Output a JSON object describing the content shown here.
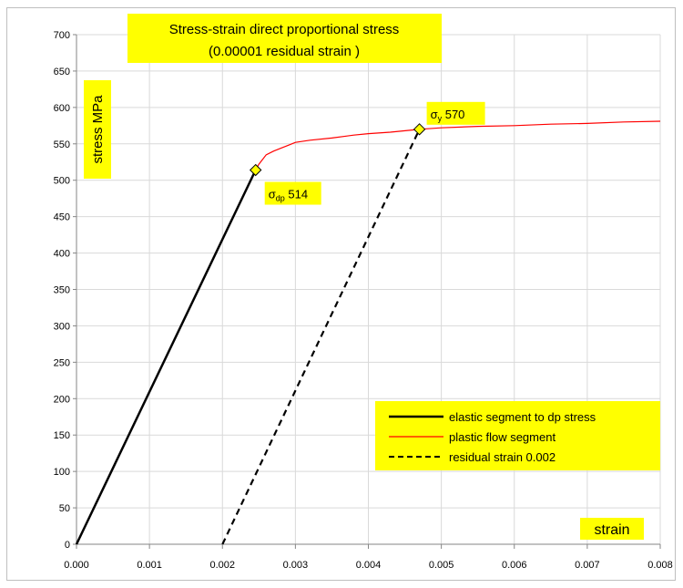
{
  "chart_data": {
    "type": "line",
    "title_line1": "Stress-strain direct proportional stress",
    "title_line2": "(0.00001 residual strain )",
    "xlabel": "strain",
    "ylabel": "stress  MPa",
    "xlim": [
      0,
      0.008
    ],
    "ylim": [
      0,
      700
    ],
    "x_ticks": [
      "0.000",
      "0.001",
      "0.002",
      "0.003",
      "0.004",
      "0.005",
      "0.006",
      "0.007",
      "0.008"
    ],
    "y_ticks": [
      "0",
      "50",
      "100",
      "150",
      "200",
      "250",
      "300",
      "350",
      "400",
      "450",
      "500",
      "550",
      "600",
      "650",
      "700"
    ],
    "grid": true,
    "legend_position": "bottom-right",
    "colors": {
      "highlight": "#ffff00",
      "elastic": "#000000",
      "plastic": "#ff0000",
      "residual": "#000000"
    },
    "series": [
      {
        "name": "elastic segment to dp stress",
        "style": "solid",
        "color": "#000000",
        "x": [
          0.0,
          0.002455
        ],
        "y": [
          0,
          514
        ]
      },
      {
        "name": "plastic flow  segment",
        "style": "solid",
        "color": "#ff0000",
        "x": [
          0.002455,
          0.0025,
          0.0026,
          0.0027,
          0.0028,
          0.0029,
          0.003,
          0.0032,
          0.0035,
          0.0038,
          0.004,
          0.0043,
          0.0046,
          0.0047,
          0.005,
          0.0055,
          0.006,
          0.0065,
          0.007,
          0.0075,
          0.008
        ],
        "y": [
          514,
          522,
          535,
          540,
          544,
          548,
          552,
          555,
          558,
          562,
          564,
          566,
          569,
          570,
          572,
          574,
          575,
          577,
          578,
          580,
          581
        ]
      },
      {
        "name": "residual strain 0.002",
        "style": "dashed",
        "color": "#000000",
        "x": [
          0.002,
          0.0047
        ],
        "y": [
          0,
          570
        ]
      }
    ],
    "points": [
      {
        "x": 0.002455,
        "y": 514,
        "label_sym": "σ",
        "label_sub": "dp",
        "label_val": "514",
        "color": "#000000"
      },
      {
        "x": 0.0047,
        "y": 570,
        "label_sym": "σ",
        "label_sub": "y",
        "label_val": "570",
        "color": "#ff0000"
      }
    ]
  }
}
